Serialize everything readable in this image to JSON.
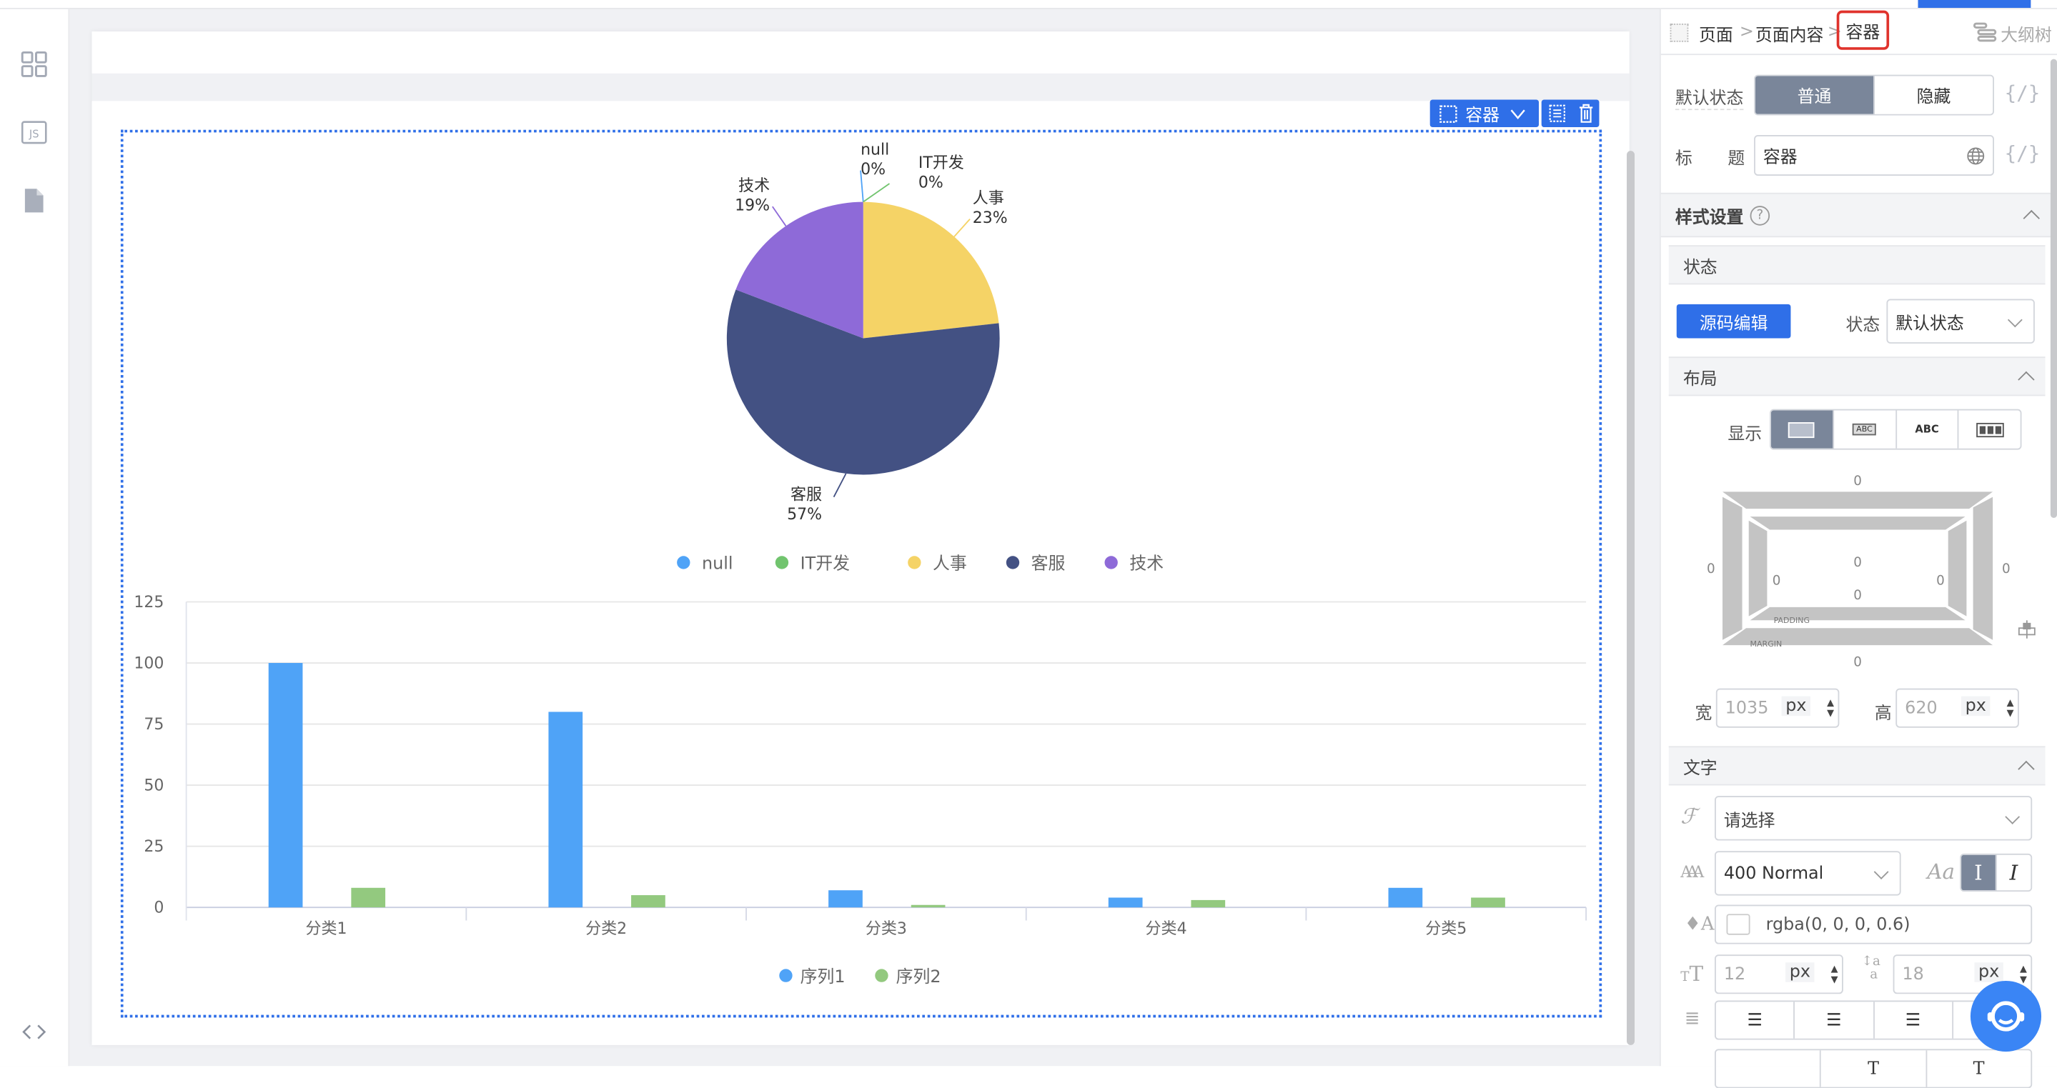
{
  "breadcrumb": {
    "items": [
      "页面",
      "页面内容",
      "容器"
    ],
    "separator": ">",
    "outline_label": "大纲树"
  },
  "toolbar": {
    "component_label": "容器"
  },
  "props": {
    "default_state_label": "默认状态",
    "state_options": [
      "普通",
      "隐藏"
    ],
    "state_selected": "普通",
    "title_label_1": "标",
    "title_label_2": "题",
    "title_value": "容器",
    "code_symbol": "{/}"
  },
  "style": {
    "section_title": "样式设置",
    "help": "?",
    "state_section": "状态",
    "source_edit_button": "源码编辑",
    "state_label": "状态",
    "state_value": "默认状态",
    "layout_section": "布局",
    "display_label": "显示",
    "display_options": [
      "block",
      "inline-block",
      "inline",
      "flex"
    ],
    "display_selected": "block",
    "display_abc": "ABC",
    "box": {
      "margin_top": "0",
      "margin_bottom": "0",
      "margin_left": "0",
      "margin_right": "0",
      "padding_top": "0",
      "padding_bottom": "0",
      "padding_left": "0",
      "padding_right": "0",
      "padding_label": "PADDING",
      "margin_label": "MARGIN"
    },
    "width_label": "宽",
    "width_placeholder": "1035",
    "height_label": "高",
    "height_placeholder": "620",
    "unit": "px",
    "text_section": "文字",
    "font_family_placeholder": "请选择",
    "font_weight": "400 Normal",
    "font_style_sample": "Aa",
    "font_style_normal": "I",
    "font_style_italic": "I",
    "color_value": "rgba(0, 0, 0, 0.6)",
    "font_size_placeholder": "12",
    "line_height_placeholder": "18"
  },
  "colors": {
    "accent": "#2f6fe8",
    "active_segment": "#7a869a",
    "selection_highlight": "#e0332c"
  },
  "chart_data": [
    {
      "type": "pie",
      "categories": [
        "null",
        "IT开发",
        "人事",
        "客服",
        "技术"
      ],
      "values": [
        0,
        0,
        23,
        57,
        19
      ],
      "labels": [
        "0%",
        "0%",
        "23%",
        "57%",
        "19%"
      ],
      "colors": [
        "#4fa3f7",
        "#71c46e",
        "#f5d366",
        "#435183",
        "#8e6ad8"
      ],
      "legend": "bottom"
    },
    {
      "type": "bar",
      "categories": [
        "分类1",
        "分类2",
        "分类3",
        "分类4",
        "分类5"
      ],
      "series": [
        {
          "name": "序列1",
          "values": [
            100,
            80,
            7,
            4,
            8
          ],
          "color": "#4fa3f7"
        },
        {
          "name": "序列2",
          "values": [
            8,
            5,
            1,
            3,
            4
          ],
          "color": "#93c97f"
        }
      ],
      "yticks": [
        "0",
        "25",
        "50",
        "75",
        "100",
        "125"
      ],
      "ylim": [
        0,
        125
      ],
      "grid": true,
      "legend": "bottom"
    }
  ]
}
